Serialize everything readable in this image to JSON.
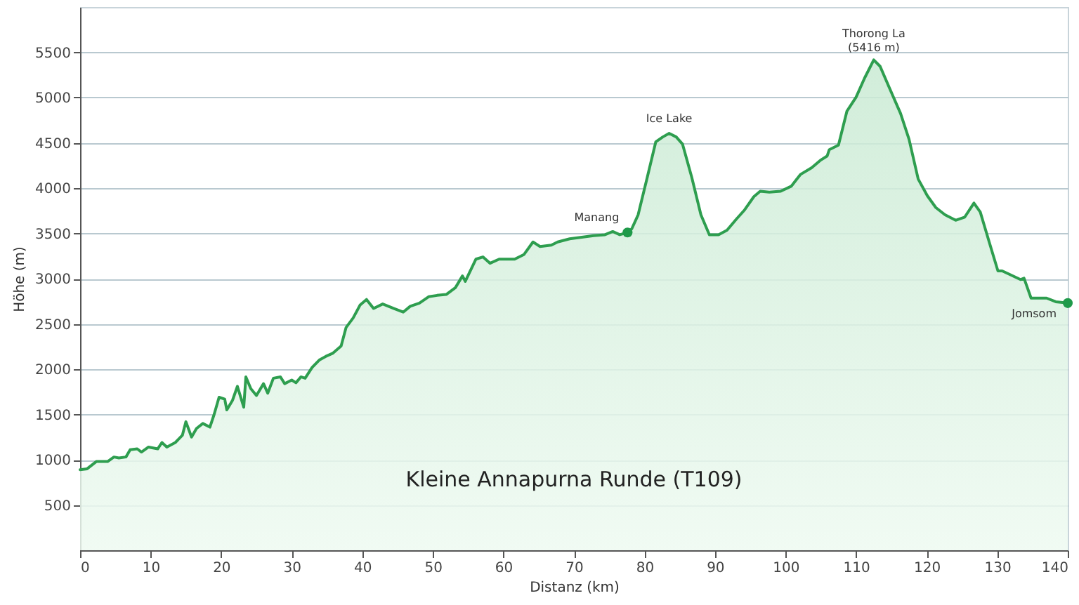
{
  "chart_data": {
    "type": "area",
    "xlabel": "Distanz  (km)",
    "ylabel": "Höhe (m)",
    "xlim": [
      0,
      140
    ],
    "xticks": [
      0,
      10,
      20,
      30,
      40,
      50,
      60,
      70,
      80,
      90,
      100,
      110,
      120,
      130,
      140
    ],
    "ylim": [
      0,
      6000
    ],
    "yticks": [
      500,
      1000,
      1500,
      2000,
      2500,
      3000,
      3500,
      4000,
      4500,
      5000,
      5500
    ],
    "grid": "y",
    "annotations": [
      {
        "text": "Manang",
        "x": 77.6,
        "y": 3510
      },
      {
        "text": "Ice Lake",
        "x": 83.5,
        "y": 4605
      },
      {
        "text": "Thorong La\n(5416 m)",
        "x": 112.5,
        "y": 5416
      },
      {
        "text": "Jomsom",
        "x": 140,
        "y": 2730
      },
      "Kleine Annapurna Runde (T109)"
    ],
    "series": [
      {
        "type": "area",
        "color": "#2e9e4f",
        "marker": "none",
        "x": [
          0,
          1,
          2.3,
          2.9,
          3.9,
          4.8,
          5.5,
          6.5,
          7.1,
          8.1,
          8.7,
          9.7,
          11,
          11.6,
          12.3,
          13.5,
          14.5,
          15,
          15.8,
          16.5,
          17.4,
          18.4,
          19,
          19.7,
          20.5,
          20.8,
          21.6,
          22.3,
          23.2,
          23.5,
          24.2,
          25,
          26,
          26.6,
          27.4,
          28.4,
          29,
          30,
          30.6,
          31.3,
          31.9,
          32.9,
          33.9,
          34.8,
          35.8,
          37,
          37.7,
          38.7,
          39.7,
          40.6,
          41.6,
          42.9,
          44.5,
          45.8,
          46.8,
          48.1,
          49.4,
          50.6,
          51.9,
          53.2,
          54.2,
          54.6,
          56.1,
          57.1,
          58.1,
          59.4,
          61.6,
          62.9,
          64.2,
          65.2,
          66.8,
          67.7,
          69.4,
          71.3,
          72.8,
          74.4,
          75.5,
          76.5,
          77.6,
          78.2,
          79.1,
          80.4,
          81.6,
          82.6,
          83.5,
          84.5,
          85.4,
          86.7,
          88,
          89.2,
          90.5,
          91.7,
          93,
          94.2,
          95.5,
          96.4,
          97.7,
          99.3,
          100.8,
          102.1,
          103.7,
          104.9,
          105.9,
          106.2,
          107.5,
          108.7,
          110,
          111.2,
          112.5,
          113.4,
          114.7,
          116.3,
          117.5,
          118.8,
          120.1,
          121.3,
          122.6,
          124.1,
          125.4,
          126.7,
          127.6,
          128.9,
          130.1,
          130.7,
          131.4,
          133.3,
          133.8,
          134.8,
          137,
          138.3,
          140
        ],
        "values": [
          890,
          900,
          980,
          980,
          980,
          1030,
          1020,
          1030,
          1110,
          1120,
          1085,
          1140,
          1120,
          1190,
          1140,
          1190,
          1270,
          1420,
          1250,
          1345,
          1400,
          1360,
          1500,
          1690,
          1670,
          1550,
          1655,
          1810,
          1580,
          1915,
          1785,
          1710,
          1840,
          1735,
          1900,
          1915,
          1840,
          1880,
          1850,
          1915,
          1900,
          2020,
          2100,
          2140,
          2175,
          2255,
          2460,
          2565,
          2710,
          2770,
          2670,
          2720,
          2670,
          2630,
          2695,
          2730,
          2800,
          2815,
          2825,
          2900,
          3030,
          2970,
          3215,
          3240,
          3170,
          3215,
          3215,
          3265,
          3405,
          3355,
          3370,
          3405,
          3440,
          3460,
          3475,
          3485,
          3520,
          3485,
          3510,
          3550,
          3705,
          4120,
          4510,
          4565,
          4605,
          4565,
          4485,
          4120,
          3705,
          3485,
          3485,
          3535,
          3655,
          3760,
          3905,
          3965,
          3955,
          3965,
          4020,
          4150,
          4225,
          4305,
          4355,
          4425,
          4475,
          4850,
          5005,
          5215,
          5416,
          5345,
          5110,
          4825,
          4540,
          4100,
          3915,
          3785,
          3705,
          3645,
          3680,
          3835,
          3735,
          3395,
          3085,
          3085,
          3060,
          2990,
          3005,
          2785,
          2785,
          2745,
          2730
        ]
      },
      {
        "type": "scatter",
        "color": "#1f9a4a",
        "marker": "circle",
        "x": [
          77.6,
          140
        ],
        "values": [
          3510,
          2730
        ]
      }
    ]
  }
}
